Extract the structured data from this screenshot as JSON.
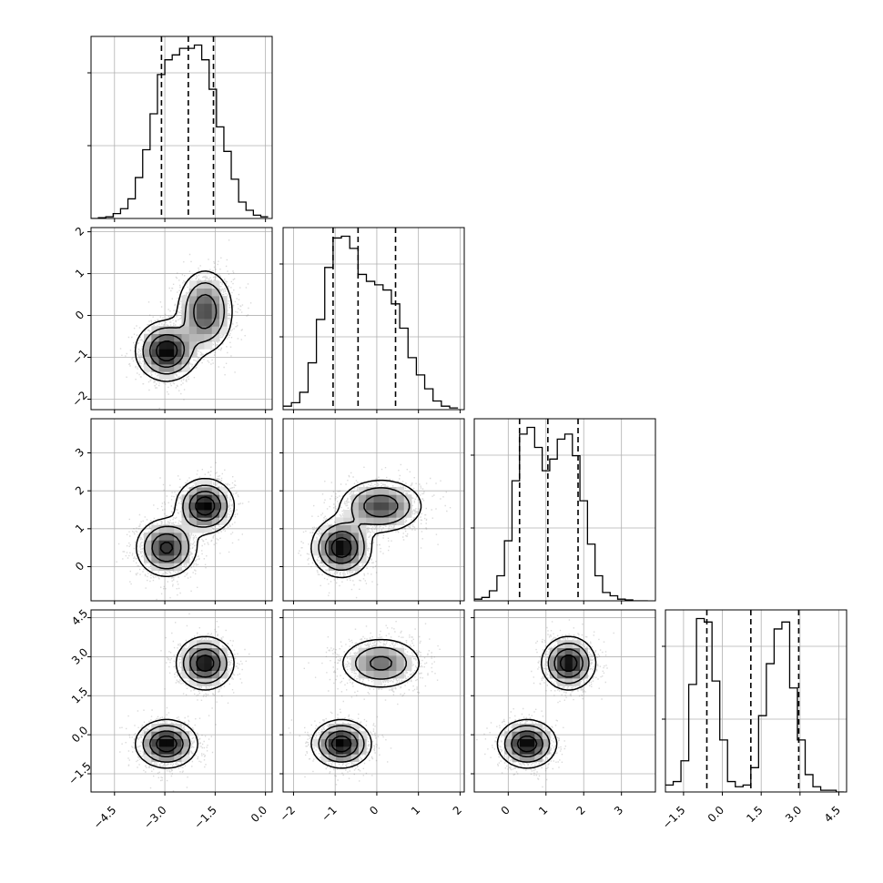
{
  "chart_data": {
    "type": "corner",
    "grid": true,
    "parameters": [
      {
        "range": [
          -5.2,
          0.2
        ],
        "ticks": [
          -4.5,
          -3.0,
          -1.5,
          0.0
        ],
        "tick_labels": [
          "−4.5",
          "−3.0",
          "−1.5",
          "0.0"
        ],
        "quantiles": [
          -3.1,
          -2.3,
          -1.55
        ],
        "histogram": {
          "bin_edges": [
            -5.2,
            -4.98,
            -4.76,
            -4.54,
            -4.32,
            -4.1,
            -3.88,
            -3.66,
            -3.44,
            -3.22,
            -3.0,
            -2.78,
            -2.56,
            -2.34,
            -2.12,
            -1.9,
            -1.68,
            -1.46,
            -1.24,
            -1.02,
            -0.8,
            -0.58,
            -0.36,
            -0.14,
            0.08
          ],
          "counts": [
            0,
            0.005,
            0.01,
            0.03,
            0.06,
            0.12,
            0.25,
            0.42,
            0.64,
            0.88,
            0.97,
            1.0,
            1.04,
            1.04,
            1.06,
            0.97,
            0.79,
            0.56,
            0.41,
            0.24,
            0.1,
            0.05,
            0.02,
            0.01
          ]
        }
      },
      {
        "range": [
          -2.25,
          2.1
        ],
        "ticks": [
          -2,
          -1,
          0,
          1,
          2
        ],
        "tick_labels": [
          "−2",
          "−1",
          "0",
          "1",
          "2"
        ],
        "quantiles": [
          -1.05,
          -0.45,
          0.45
        ],
        "histogram": {
          "bin_edges": [
            -2.25,
            -2.05,
            -1.85,
            -1.65,
            -1.45,
            -1.25,
            -1.05,
            -0.85,
            -0.65,
            -0.45,
            -0.25,
            -0.05,
            0.15,
            0.35,
            0.55,
            0.75,
            0.95,
            1.15,
            1.35,
            1.55,
            1.75,
            1.95
          ],
          "counts": [
            0.02,
            0.04,
            0.1,
            0.27,
            0.52,
            0.82,
            0.99,
            1.0,
            0.93,
            0.78,
            0.74,
            0.72,
            0.69,
            0.61,
            0.47,
            0.3,
            0.2,
            0.12,
            0.05,
            0.02,
            0.01
          ]
        }
      },
      {
        "range": [
          -0.9,
          3.9
        ],
        "ticks": [
          0,
          1,
          2,
          3
        ],
        "tick_labels": [
          "0",
          "1",
          "2",
          "3"
        ],
        "quantiles": [
          0.3,
          1.05,
          1.85
        ],
        "histogram": {
          "bin_edges": [
            -0.9,
            -0.7,
            -0.5,
            -0.3,
            -0.1,
            0.1,
            0.3,
            0.5,
            0.7,
            0.9,
            1.1,
            1.3,
            1.5,
            1.7,
            1.9,
            2.1,
            2.3,
            2.5,
            2.7,
            2.9,
            3.1,
            3.3,
            3.5,
            3.7
          ],
          "counts": [
            0.01,
            0.02,
            0.06,
            0.15,
            0.36,
            0.72,
            1.0,
            1.04,
            0.92,
            0.78,
            0.85,
            0.97,
            1.0,
            0.87,
            0.6,
            0.34,
            0.15,
            0.05,
            0.03,
            0.01,
            0.005,
            0,
            0
          ]
        }
      },
      {
        "range": [
          -2.2,
          4.8
        ],
        "ticks": [
          -1.5,
          0.0,
          1.5,
          3.0,
          4.5
        ],
        "tick_labels": [
          "−1.5",
          "0.0",
          "1.5",
          "3.0",
          "4.5"
        ],
        "quantiles": [
          -0.6,
          1.1,
          2.95
        ],
        "histogram": {
          "bin_edges": [
            -2.2,
            -1.9,
            -1.6,
            -1.3,
            -1.0,
            -0.7,
            -0.4,
            -0.1,
            0.2,
            0.5,
            0.8,
            1.1,
            1.4,
            1.7,
            2.0,
            2.3,
            2.6,
            2.9,
            3.2,
            3.5,
            3.8,
            4.1,
            4.4,
            4.7
          ],
          "counts": [
            0.04,
            0.06,
            0.18,
            0.62,
            1.0,
            0.98,
            0.64,
            0.3,
            0.06,
            0.03,
            0.04,
            0.14,
            0.44,
            0.74,
            0.94,
            0.98,
            0.6,
            0.3,
            0.1,
            0.03,
            0.01,
            0.01,
            0
          ]
        }
      }
    ],
    "modes": [
      {
        "mean": [
          -2.95,
          -0.85,
          0.5,
          -0.35
        ],
        "sd": [
          0.45,
          0.35,
          0.38,
          0.45
        ],
        "weight": 0.5
      },
      {
        "mean": [
          -1.8,
          0.1,
          1.6,
          2.75
        ],
        "sd": [
          0.42,
          0.5,
          0.35,
          0.5
        ],
        "weight": 0.5
      }
    ]
  }
}
